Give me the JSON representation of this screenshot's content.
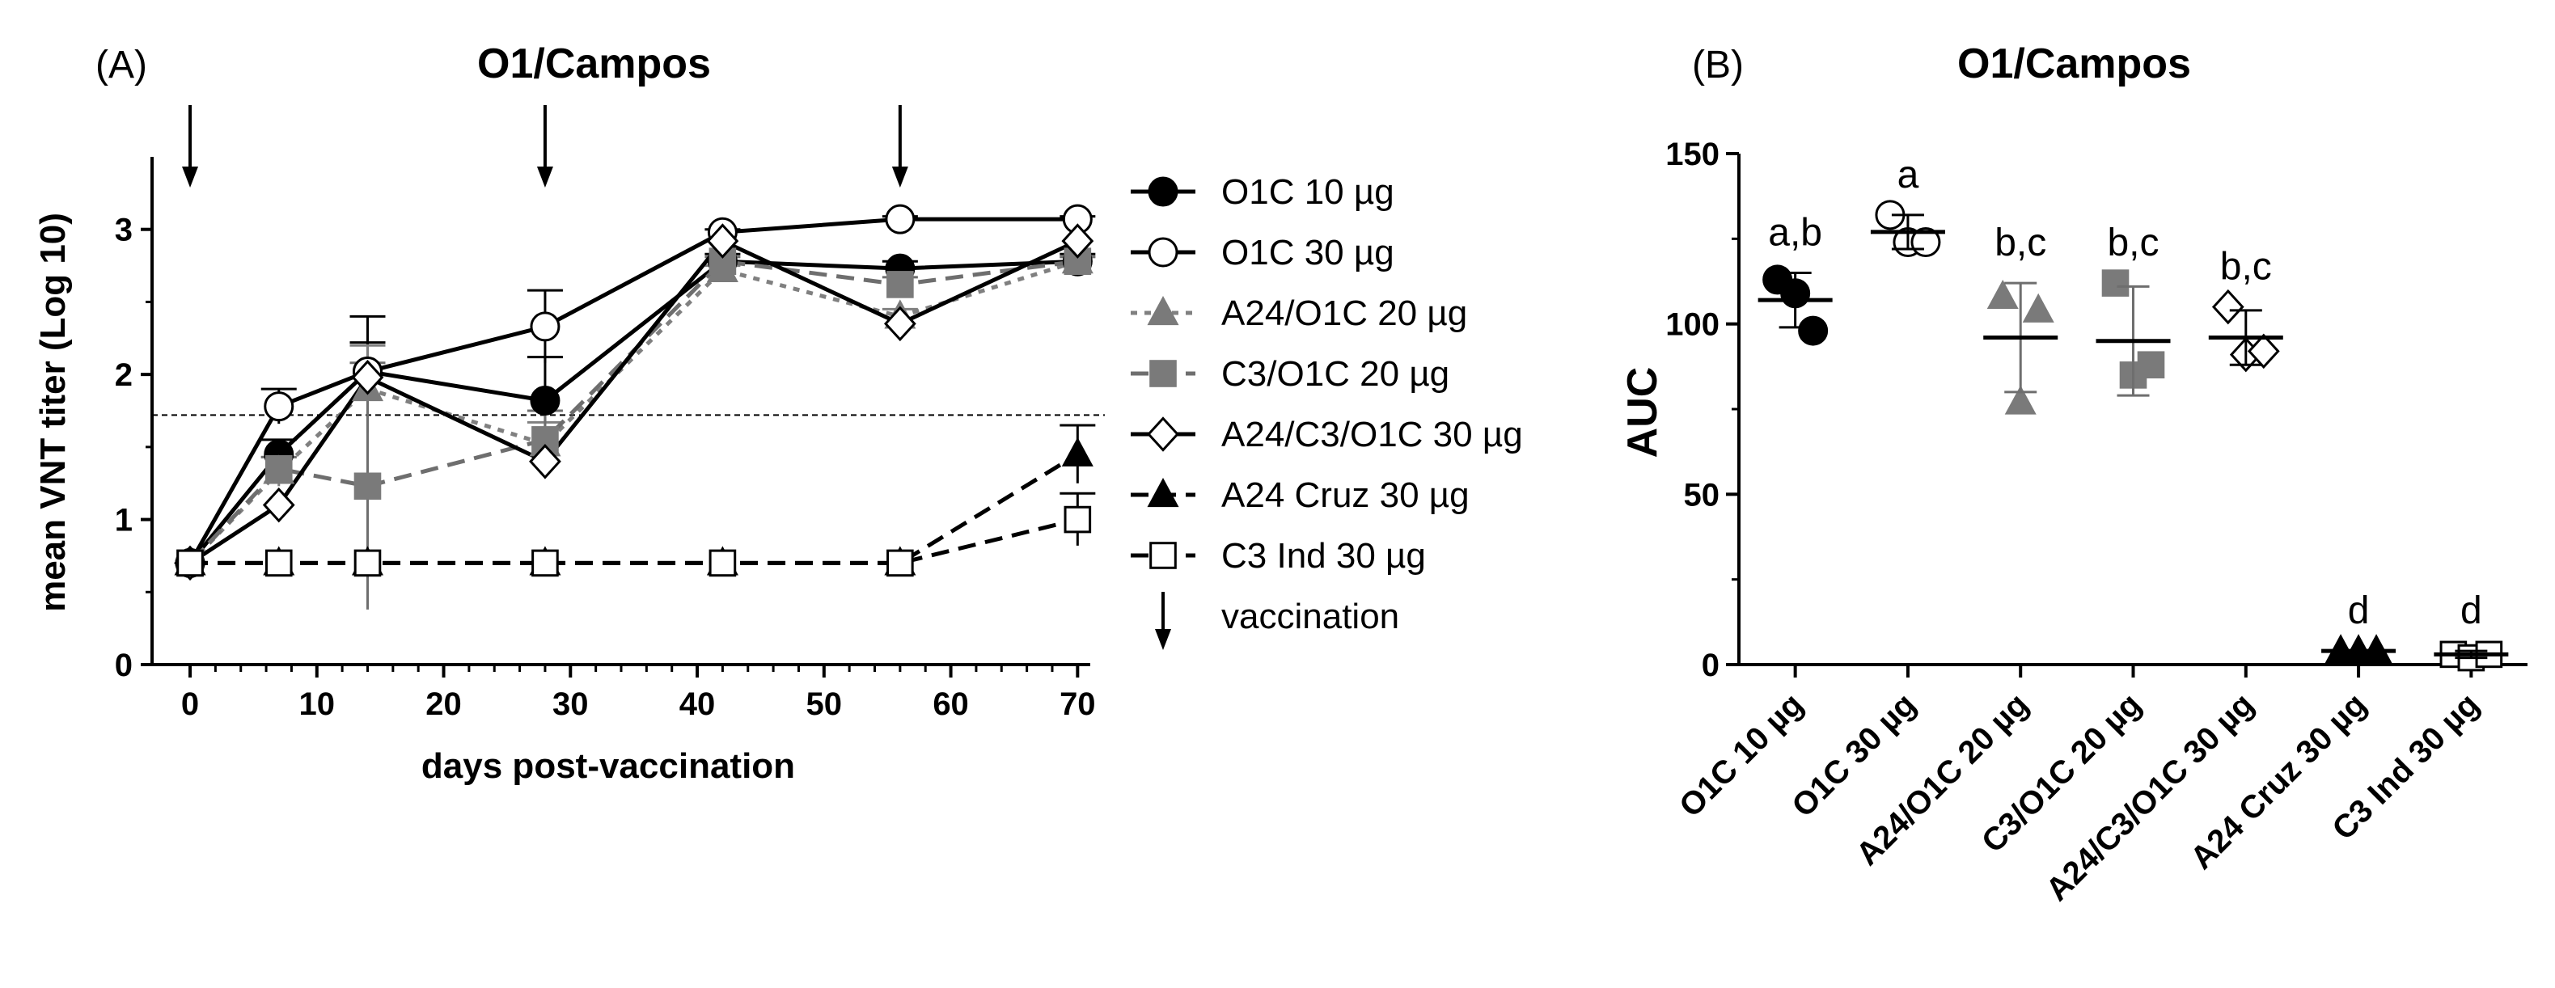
{
  "figure": {
    "panel_a_label": "(A)",
    "panel_b_label": "(B)",
    "title": "O1/Campos"
  },
  "chart_data": [
    {
      "type": "line",
      "panel": "(A)",
      "title": "O1/Campos",
      "xlabel": "days post-vaccination",
      "ylabel": "mean VNT titer (Log 10)",
      "xlim": [
        -3,
        71
      ],
      "ylim": [
        0,
        3.5
      ],
      "xticks": [
        0,
        10,
        20,
        30,
        40,
        50,
        60,
        70
      ],
      "yticks": [
        0,
        1,
        2,
        3
      ],
      "threshold": 1.72,
      "vaccination_days": [
        0,
        28,
        56
      ],
      "legend_extra": "vaccination",
      "series": [
        {
          "name": "O1C 10 µg",
          "marker": "circle-filled",
          "line": "solid",
          "color": "#000000",
          "x": [
            0,
            7,
            14,
            28,
            42,
            56,
            70
          ],
          "y": [
            0.7,
            1.45,
            2.02,
            1.82,
            2.78,
            2.73,
            2.78
          ],
          "err": [
            0,
            0.1,
            0.2,
            0.3,
            0.05,
            0.05,
            0.05
          ]
        },
        {
          "name": "O1C 30 µg",
          "marker": "circle-open",
          "line": "solid",
          "color": "#000000",
          "x": [
            0,
            7,
            14,
            28,
            42,
            56,
            70
          ],
          "y": [
            0.7,
            1.78,
            2.02,
            2.33,
            2.98,
            3.07,
            3.07
          ],
          "err": [
            0,
            0.12,
            0.38,
            0.25,
            0.02,
            0.02,
            0.02
          ]
        },
        {
          "name": "A24/O1C 20 µg",
          "marker": "triangle-gray",
          "line": "dotted",
          "color": "#808080",
          "x": [
            0,
            7,
            14,
            28,
            42,
            56,
            70
          ],
          "y": [
            0.7,
            1.33,
            1.9,
            1.52,
            2.72,
            2.4,
            2.78
          ],
          "err": [
            0,
            0.1,
            0.3,
            0.15,
            0.03,
            0.05,
            0.03
          ]
        },
        {
          "name": "C3/O1C 20 µg",
          "marker": "square-gray",
          "line": "dashed",
          "color": "#6e6e6e",
          "x": [
            0,
            7,
            14,
            28,
            42,
            56,
            70
          ],
          "y": [
            0.7,
            1.35,
            1.23,
            1.55,
            2.78,
            2.62,
            2.78
          ],
          "err": [
            0,
            0.08,
            0.85,
            0.2,
            0.03,
            0.05,
            0.03
          ]
        },
        {
          "name": "A24/C3/O1C 30 µg",
          "marker": "diamond-open",
          "line": "solid",
          "color": "#000000",
          "x": [
            0,
            7,
            14,
            28,
            42,
            56,
            70
          ],
          "y": [
            0.7,
            1.1,
            1.98,
            1.4,
            2.92,
            2.35,
            2.92
          ],
          "err": [
            0,
            0,
            0,
            0,
            0,
            0,
            0
          ]
        },
        {
          "name": "A24 Cruz 30 µg",
          "marker": "triangle-filled",
          "line": "dashed",
          "color": "#000000",
          "x": [
            0,
            7,
            14,
            28,
            42,
            56,
            70
          ],
          "y": [
            0.7,
            0.7,
            0.7,
            0.7,
            0.7,
            0.7,
            1.45
          ],
          "err": [
            0,
            0,
            0,
            0,
            0,
            0,
            0.2
          ]
        },
        {
          "name": "C3 Ind 30 µg",
          "marker": "square-open",
          "line": "dashed",
          "color": "#000000",
          "x": [
            0,
            7,
            14,
            28,
            42,
            56,
            70
          ],
          "y": [
            0.7,
            0.7,
            0.7,
            0.7,
            0.7,
            0.7,
            1.0
          ],
          "err": [
            0,
            0,
            0,
            0,
            0,
            0,
            0.18
          ]
        }
      ]
    },
    {
      "type": "scatter",
      "panel": "(B)",
      "title": "O1/Campos",
      "ylabel": "AUC",
      "ylim": [
        0,
        150
      ],
      "yticks": [
        0,
        50,
        100,
        150
      ],
      "categories": [
        "O1C 10 µg",
        "O1C 30 µg",
        "A24/O1C 20 µg",
        "C3/O1C 20 µg",
        "A24/C3/O1C 30 µg",
        "A24 Cruz 30 µg",
        "C3 Ind 30 µg"
      ],
      "groups": [
        {
          "label": "a,b",
          "marker": "circle-filled",
          "points": [
            113,
            109,
            98
          ],
          "mean": 107,
          "err": 8
        },
        {
          "label": "a",
          "marker": "circle-open",
          "points": [
            132,
            124,
            124
          ],
          "mean": 127,
          "err": 5
        },
        {
          "label": "b,c",
          "marker": "triangle-gray",
          "points": [
            108,
            77,
            104
          ],
          "mean": 96,
          "err": 16
        },
        {
          "label": "b,c",
          "marker": "square-gray",
          "points": [
            112,
            85,
            88
          ],
          "mean": 95,
          "err": 16
        },
        {
          "label": "b,c",
          "marker": "diamond-open",
          "points": [
            105,
            91,
            92
          ],
          "mean": 96,
          "err": 8
        },
        {
          "label": "d",
          "marker": "triangle-filled",
          "points": [
            4,
            4,
            4
          ],
          "mean": 4,
          "err": 0
        },
        {
          "label": "d",
          "marker": "square-open",
          "points": [
            3,
            2,
            3
          ],
          "mean": 3,
          "err": 1
        }
      ]
    }
  ]
}
